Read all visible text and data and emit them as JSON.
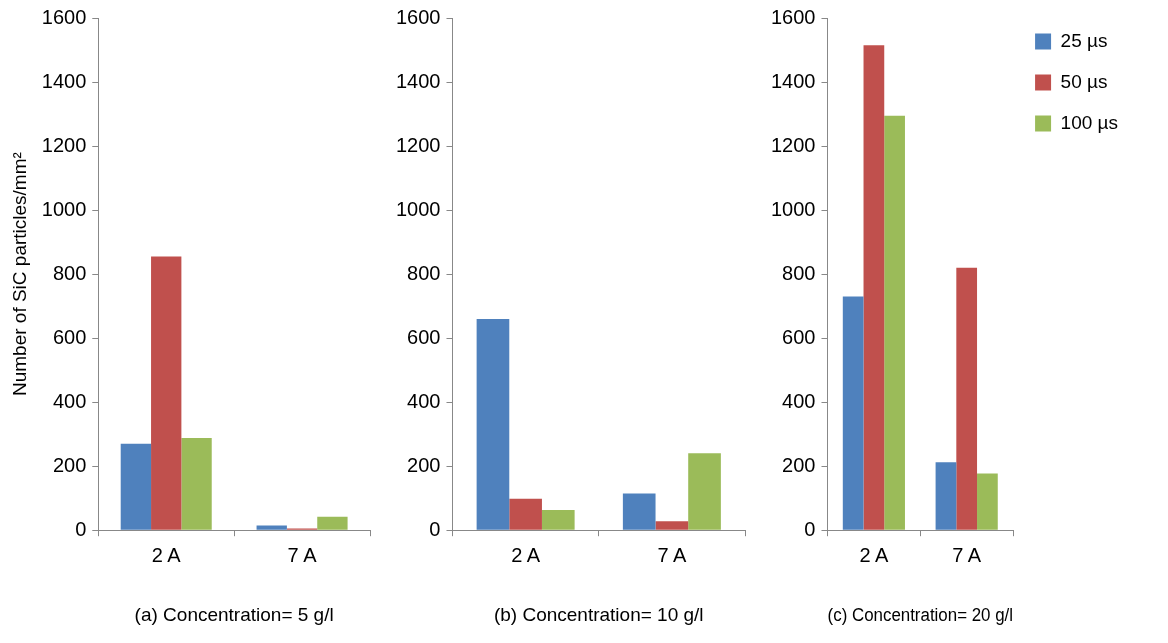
{
  "chart_data": [
    {
      "type": "bar",
      "xlabel": "(a) Concentration= 5 g/l",
      "ylabel": "Number of SiC particles/mm²",
      "categories": [
        "2 A",
        "7 A"
      ],
      "ylim": [
        0,
        1600
      ],
      "yticks": [
        0,
        200,
        400,
        600,
        800,
        1000,
        1200,
        1400,
        1600
      ],
      "series": [
        {
          "color": "#4f81bd",
          "values": [
            270,
            15
          ]
        },
        {
          "color": "#c0504d",
          "values": [
            855,
            5
          ]
        },
        {
          "color": "#9bbb59",
          "values": [
            288,
            42
          ]
        }
      ]
    },
    {
      "type": "bar",
      "xlabel": "(b) Concentration= 10 g/l",
      "categories": [
        "2 A",
        "7 A"
      ],
      "ylim": [
        0,
        1600
      ],
      "yticks": [
        0,
        200,
        400,
        600,
        800,
        1000,
        1200,
        1400,
        1600
      ],
      "series": [
        {
          "color": "#4f81bd",
          "values": [
            660,
            115
          ]
        },
        {
          "color": "#c0504d",
          "values": [
            98,
            28
          ]
        },
        {
          "color": "#9bbb59",
          "values": [
            63,
            240
          ]
        }
      ]
    },
    {
      "type": "bar",
      "xlabel": "(c) Concentration= 20 g/l",
      "categories": [
        "2 A",
        "7 A"
      ],
      "ylim": [
        0,
        1600
      ],
      "yticks": [
        0,
        200,
        400,
        600,
        800,
        1000,
        1200,
        1400,
        1600
      ],
      "legend": "top right",
      "series": [
        {
          "name": "25 µs",
          "color": "#4f81bd",
          "values": [
            730,
            212
          ]
        },
        {
          "name": "50 µs",
          "color": "#c0504d",
          "values": [
            1515,
            820
          ]
        },
        {
          "name": "100 µs",
          "color": "#9bbb59",
          "values": [
            1295,
            177
          ]
        }
      ]
    }
  ]
}
